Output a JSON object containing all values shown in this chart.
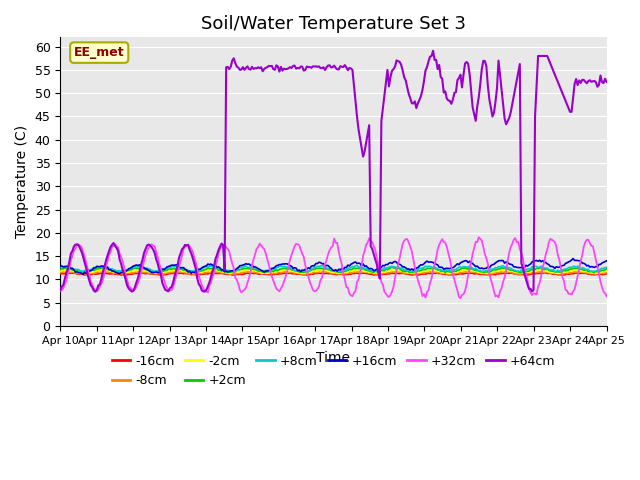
{
  "title": "Soil/Water Temperature Set 3",
  "xlabel": "Time",
  "ylabel": "Temperature (C)",
  "ylim": [
    0,
    62
  ],
  "yticks": [
    0,
    5,
    10,
    15,
    20,
    25,
    30,
    35,
    40,
    45,
    50,
    55,
    60
  ],
  "x_tick_labels": [
    "Apr 10",
    "Apr 11",
    "Apr 12",
    "Apr 13",
    "Apr 14",
    "Apr 15",
    "Apr 16",
    "Apr 17",
    "Apr 18",
    "Apr 19",
    "Apr 20",
    "Apr 21",
    "Apr 22",
    "Apr 23",
    "Apr 24",
    "Apr 25"
  ],
  "background_color": "#e8e8e8",
  "figure_color": "#ffffff",
  "legend_label": "EE_met",
  "series_colors": {
    "-16cm": "#ff0000",
    "-8cm": "#ff8800",
    "-2cm": "#ffff00",
    "+2cm": "#00cc00",
    "+8cm": "#00cccc",
    "+16cm": "#0000cc",
    "+32cm": "#ff44ff",
    "+64cm": "#9900cc"
  },
  "title_fontsize": 13,
  "axis_label_fontsize": 10,
  "tick_fontsize": 9,
  "legend_fontsize": 9
}
